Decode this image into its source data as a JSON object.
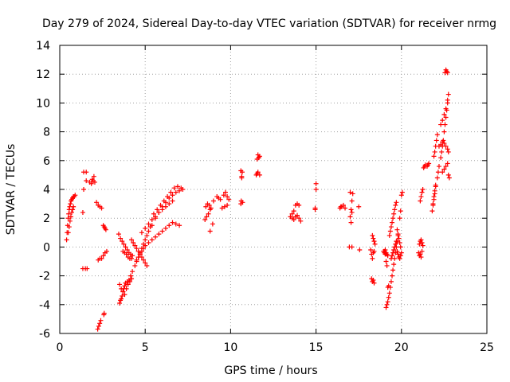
{
  "chart_data": {
    "type": "scatter",
    "title": "Day 279 of 2024, Sidereal Day-to-day VTEC variation (SDTVAR) for receiver nrmg",
    "xlabel": "GPS time / hours",
    "ylabel": "SDTVAR / TECUs",
    "xlim": [
      0,
      25
    ],
    "ylim": [
      -6,
      14
    ],
    "xticks": [
      0,
      5,
      10,
      15,
      20,
      25
    ],
    "yticks": [
      -6,
      -4,
      -2,
      0,
      2,
      4,
      6,
      8,
      10,
      12,
      14
    ],
    "grid": true,
    "marker": "+",
    "color": "#ff0000",
    "series": [
      {
        "name": "SDTVAR",
        "x": [
          0.4,
          0.43,
          0.46,
          0.49,
          0.52,
          0.55,
          0.58,
          0.62,
          0.66,
          0.7,
          0.75,
          0.8,
          0.85,
          0.9,
          0.5,
          0.55,
          0.6,
          0.65,
          0.7,
          0.75,
          0.8,
          1.35,
          1.5,
          1.6,
          1.35,
          1.4,
          1.55,
          1.4,
          1.55,
          1.75,
          1.9,
          2.0,
          1.85,
          1.95,
          2.05,
          2.15,
          2.25,
          2.35,
          2.45,
          2.55,
          2.6,
          2.65,
          2.7,
          2.25,
          2.35,
          2.45,
          2.55,
          2.65,
          2.75,
          2.22,
          2.28,
          2.34,
          2.4,
          2.58,
          2.6,
          3.45,
          3.55,
          3.65,
          3.75,
          3.85,
          3.95,
          4.05,
          4.15,
          4.25,
          3.7,
          3.8,
          3.9,
          4.0,
          4.1,
          4.2,
          3.5,
          3.6,
          3.7,
          3.8,
          3.9,
          4.0,
          4.1,
          4.2,
          3.5,
          3.55,
          3.6,
          3.65,
          3.7,
          3.75,
          3.8,
          3.85,
          3.95,
          4.05,
          4.15,
          4.25,
          4.2,
          4.3,
          4.4,
          4.5,
          4.6,
          4.7,
          4.8,
          4.9,
          5.0,
          5.1,
          4.4,
          4.5,
          4.6,
          4.7,
          4.8,
          4.9,
          5.0,
          5.1,
          5.2,
          5.3,
          4.5,
          4.6,
          4.7,
          4.8,
          4.9,
          5.0,
          5.2,
          5.4,
          5.6,
          5.8,
          6.0,
          6.2,
          6.4,
          6.6,
          6.8,
          7.0,
          4.8,
          5.0,
          5.2,
          5.4,
          5.6,
          5.8,
          6.0,
          6.2,
          6.4,
          6.6,
          5.4,
          5.6,
          5.8,
          6.0,
          6.2,
          6.4,
          6.6,
          6.8,
          7.0,
          7.2,
          5.5,
          5.7,
          5.9,
          6.1,
          6.3,
          6.5,
          6.7,
          6.9,
          7.1,
          8.5,
          8.6,
          8.7,
          8.8,
          8.55,
          8.65,
          8.75,
          8.85,
          8.8,
          8.95,
          9.0,
          9.2,
          9.3,
          9.4,
          9.6,
          9.7,
          9.8,
          9.9,
          9.5,
          9.65,
          9.8,
          10.6,
          10.62,
          10.65,
          10.68,
          10.6,
          10.65,
          10.7,
          11.5,
          11.55,
          11.6,
          11.65,
          11.7,
          11.55,
          11.6,
          11.65,
          11.7,
          13.5,
          13.6,
          13.7,
          13.8,
          13.9,
          14.0,
          14.1,
          13.6,
          13.7,
          13.8,
          13.9,
          14.0,
          14.95,
          14.95,
          15.0,
          15.0,
          16.4,
          16.5,
          16.6,
          16.7,
          16.45,
          16.95,
          17.0,
          17.05,
          17.1,
          17.0,
          17.05,
          17.1,
          17.15,
          17.1,
          17.5,
          17.55,
          18.2,
          18.25,
          18.3,
          18.35,
          18.4,
          18.25,
          18.3,
          18.35,
          18.4,
          18.3,
          18.35,
          18.4,
          18.45,
          18.95,
          19.0,
          19.05,
          19.1,
          19.15,
          19.2,
          19.25,
          19.0,
          19.05,
          19.1,
          19.15,
          19.2,
          19.1,
          19.15,
          19.2,
          19.25,
          19.3,
          19.35,
          19.4,
          19.45,
          19.5,
          19.55,
          19.6,
          19.65,
          19.7,
          19.75,
          19.8,
          19.3,
          19.35,
          19.4,
          19.45,
          19.5,
          19.55,
          19.6,
          19.65,
          19.7,
          19.75,
          19.8,
          19.85,
          19.9,
          19.95,
          19.4,
          19.45,
          19.5,
          19.55,
          19.6,
          19.65,
          19.7,
          19.75,
          19.8,
          19.85,
          19.9,
          19.95,
          20.0,
          19.9,
          19.95,
          20.0,
          20.05,
          21.0,
          21.05,
          21.1,
          21.15,
          21.2,
          21.05,
          21.1,
          21.15,
          21.2,
          21.25,
          21.1,
          21.15,
          21.2,
          21.25,
          21.3,
          21.35,
          21.4,
          21.5,
          21.55,
          21.6,
          21.8,
          21.85,
          21.9,
          21.95,
          22.0,
          21.85,
          21.9,
          21.95,
          22.0,
          21.9,
          21.95,
          22.0,
          22.05,
          22.1,
          22.1,
          22.15,
          22.2,
          22.3,
          22.35,
          22.4,
          22.45,
          22.5,
          22.55,
          22.6,
          22.65,
          22.7,
          22.2,
          22.3,
          22.4,
          22.5,
          22.6,
          22.7,
          22.75,
          22.3,
          22.4,
          22.5,
          22.6,
          22.7,
          22.75,
          22.4,
          22.5,
          22.6,
          22.7,
          22.75,
          22.8,
          22.55,
          22.6,
          22.65,
          22.7
        ],
        "y": [
          0.5,
          1.0,
          1.5,
          2.0,
          2.3,
          2.6,
          2.8,
          3.0,
          3.2,
          3.3,
          3.4,
          3.5,
          3.5,
          3.6,
          1.0,
          1.4,
          1.8,
          2.1,
          2.4,
          2.6,
          2.8,
          -1.5,
          -1.5,
          -1.5,
          2.4,
          4.0,
          4.6,
          5.2,
          5.2,
          4.5,
          4.7,
          4.9,
          4.4,
          4.6,
          4.5,
          3.1,
          2.9,
          2.8,
          2.7,
          1.5,
          1.4,
          1.3,
          1.2,
          -0.9,
          -0.8,
          -0.8,
          -0.6,
          -0.4,
          -0.3,
          -5.7,
          -5.5,
          -5.3,
          -5.1,
          -4.7,
          -4.6,
          0.9,
          0.6,
          0.4,
          0.2,
          0.0,
          -0.2,
          -0.4,
          -0.5,
          -0.6,
          -0.3,
          -0.4,
          -0.5,
          -0.7,
          -0.8,
          -0.8,
          -2.6,
          -2.9,
          -3.1,
          -3.3,
          -2.9,
          -2.6,
          -2.4,
          -2.2,
          -3.9,
          -3.7,
          -3.6,
          -3.4,
          -3.1,
          -2.9,
          -2.7,
          -2.5,
          -2.4,
          -2.3,
          -2.0,
          -1.7,
          0.5,
          0.3,
          0.1,
          -0.1,
          -0.3,
          -0.5,
          -0.7,
          -0.9,
          -1.1,
          -1.3,
          -1.3,
          -1.0,
          -0.7,
          -0.4,
          -0.1,
          0.2,
          0.5,
          0.8,
          1.1,
          1.4,
          -0.9,
          -0.7,
          -0.5,
          -0.3,
          -0.1,
          0.1,
          0.3,
          0.5,
          0.7,
          0.9,
          1.1,
          1.3,
          1.5,
          1.7,
          1.6,
          1.5,
          1.0,
          1.3,
          1.6,
          1.9,
          2.1,
          2.4,
          2.6,
          2.8,
          3.0,
          3.2,
          1.5,
          2.0,
          2.4,
          2.8,
          3.1,
          3.4,
          3.6,
          3.8,
          3.9,
          4.0,
          2.3,
          2.6,
          2.9,
          3.2,
          3.5,
          3.8,
          4.1,
          4.2,
          4.1,
          1.9,
          2.1,
          2.3,
          2.6,
          2.8,
          3.0,
          2.9,
          2.7,
          1.1,
          1.6,
          3.2,
          3.5,
          3.4,
          3.3,
          3.6,
          3.8,
          3.5,
          3.3,
          2.7,
          2.8,
          2.9,
          3.0,
          3.2,
          4.8,
          5.2,
          5.3,
          4.9,
          3.1,
          5.0,
          5.1,
          5.2,
          6.2,
          6.3,
          6.1,
          6.4,
          6.2,
          5.0,
          2.1,
          2.0,
          1.9,
          2.1,
          2.2,
          2.0,
          1.8,
          2.3,
          2.5,
          2.9,
          3.0,
          2.9,
          2.6,
          2.7,
          4.0,
          4.4,
          2.7,
          2.8,
          2.9,
          2.7,
          2.8,
          0.0,
          2.1,
          2.6,
          3.2,
          3.8,
          1.7,
          2.4,
          3.7,
          0.0,
          2.8,
          -0.2,
          -0.2,
          -0.5,
          -0.8,
          -0.4,
          -0.3,
          -2.2,
          -2.4,
          -2.3,
          -2.5,
          0.8,
          0.6,
          0.4,
          0.2,
          -0.3,
          -0.4,
          -0.5,
          -1.0,
          -1.3,
          -2.8,
          -2.7,
          -0.3,
          -0.2,
          -0.4,
          -0.5,
          -0.6,
          -4.2,
          -4.0,
          -3.8,
          -3.5,
          -3.2,
          -2.8,
          -2.4,
          -2.0,
          -1.6,
          -1.2,
          -0.8,
          -0.4,
          0.0,
          0.4,
          0.8,
          0.8,
          1.1,
          1.4,
          1.7,
          2.0,
          2.3,
          2.6,
          2.9,
          3.1,
          1.2,
          0.9,
          0.6,
          0.3,
          0.0,
          -0.8,
          -0.6,
          -0.4,
          -0.2,
          0.0,
          0.2,
          0.4,
          -0.3,
          -0.5,
          -0.7,
          -0.8,
          -0.6,
          -0.4,
          2.0,
          2.5,
          3.6,
          3.8,
          -0.4,
          -0.6,
          -0.5,
          -0.7,
          -0.3,
          0.2,
          0.4,
          0.5,
          0.3,
          0.1,
          3.2,
          3.5,
          3.8,
          4.0,
          5.5,
          5.6,
          5.7,
          5.6,
          5.7,
          5.8,
          2.5,
          2.9,
          3.3,
          3.7,
          4.2,
          3.0,
          3.5,
          3.9,
          4.3,
          6.3,
          6.6,
          7.0,
          7.4,
          7.8,
          4.8,
          5.2,
          5.6,
          6.2,
          6.6,
          7.0,
          7.4,
          8.0,
          8.5,
          9.0,
          9.5,
          10.0,
          7.0,
          7.1,
          7.3,
          7.2,
          7.0,
          6.8,
          6.6,
          8.5,
          8.8,
          9.2,
          9.6,
          10.2,
          10.6,
          5.2,
          5.4,
          5.6,
          5.8,
          5.0,
          4.8,
          12.1,
          12.3,
          12.2,
          12.1
        ]
      }
    ]
  }
}
